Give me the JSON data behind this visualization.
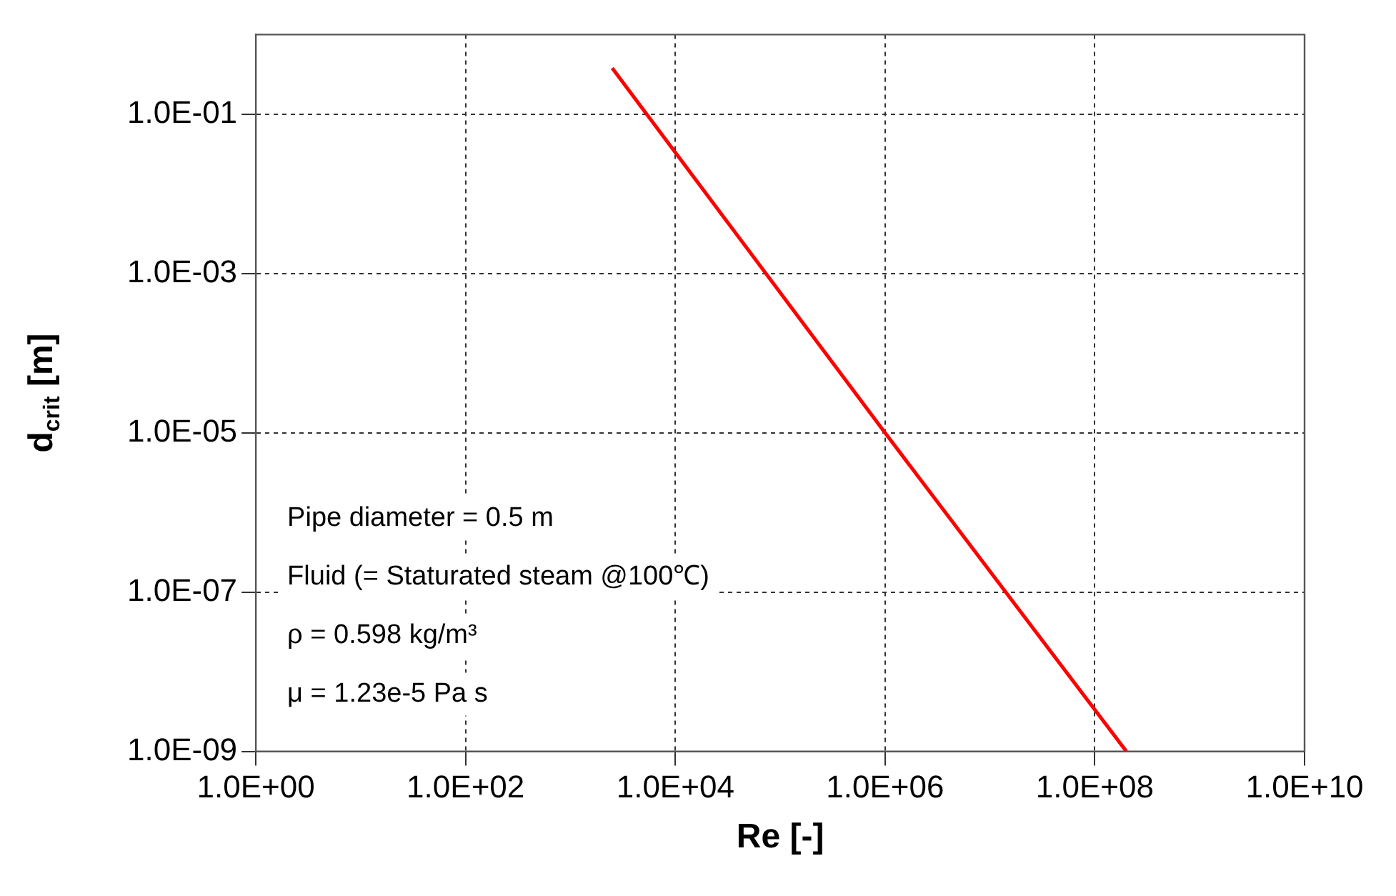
{
  "chart_data": {
    "type": "line",
    "xlabel": "Re [-]",
    "ylabel": "d$_{crit}$ [m]",
    "log": "xy",
    "grid": true,
    "marker": "none",
    "legend": false,
    "x": [
      2500,
      1000000,
      200000000
    ],
    "series": [
      {
        "color": "#ff0000",
        "values": [
          0.38,
          1e-05,
          1e-09
        ]
      }
    ],
    "xlim": [
      1,
      10000000000
    ],
    "xticks": [
      {
        "value": 1,
        "label": "1.0E+00"
      },
      {
        "value": 100,
        "label": "1.0E+02"
      },
      {
        "value": 10000,
        "label": "1.0E+04"
      },
      {
        "value": 1000000,
        "label": "1.0E+06"
      },
      {
        "value": 100000000,
        "label": "1.0E+08"
      },
      {
        "value": 10000000000,
        "label": "1.0E+10"
      }
    ],
    "ylim": [
      1e-09,
      1
    ],
    "yticks": [
      {
        "value": 1e-09,
        "label": "1.0E-09"
      },
      {
        "value": 1e-07,
        "label": "1.0E-07"
      },
      {
        "value": 1e-05,
        "label": "1.0E-05"
      },
      {
        "value": 0.001,
        "label": "1.0E-03"
      },
      {
        "value": 0.1,
        "label": "1.0E-01"
      }
    ],
    "annotations": [
      "Pipe diameter = 0.5 m",
      "Fluid (= Staturated steam @100℃)",
      "ρ = 0.598 kg/m³",
      "μ = 1.23e-5 Pa s"
    ]
  }
}
